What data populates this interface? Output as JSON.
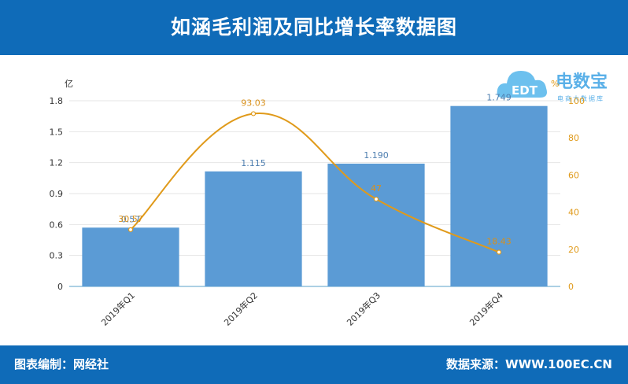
{
  "header": {
    "title": "如涵毛利润及同比增长率数据图"
  },
  "footer": {
    "left_label": "图表编制：网经社",
    "right_label": "数据来源：WWW.100EC.CN"
  },
  "logo": {
    "name": "电数宝",
    "sub": "电商大数据库",
    "mark": "EDT"
  },
  "colors": {
    "bar": "#5b9bd5",
    "line": "#e09a1a",
    "header_bg": "#0f6bb8",
    "bar_label": "#4f7fb0",
    "line_label": "#d9901a"
  },
  "chart_data": {
    "type": "bar",
    "categories": [
      "2019年Q1",
      "2019年Q2",
      "2019年Q3",
      "2019年Q4"
    ],
    "series": [
      {
        "name": "",
        "type": "bar",
        "axis": "left",
        "values": [
          0.57,
          1.115,
          1.19,
          1.749
        ],
        "labels": [
          "0.57",
          "1.115",
          "1.190",
          "1.749"
        ]
      },
      {
        "name": "",
        "type": "line",
        "axis": "right",
        "values": [
          30.57,
          93.03,
          47,
          18.43
        ],
        "labels": [
          "30.57",
          "93.03",
          "47",
          "18.43"
        ]
      }
    ],
    "y_left": {
      "unit": "亿",
      "range": [
        0,
        1.8
      ],
      "ticks": [
        "0",
        "0.3",
        "0.6",
        "0.9",
        "1.2",
        "1.5",
        "1.8"
      ]
    },
    "y_right": {
      "unit": "%",
      "range": [
        0,
        100
      ],
      "ticks": [
        "0",
        "20",
        "40",
        "60",
        "80",
        "100"
      ]
    },
    "grid": true
  }
}
